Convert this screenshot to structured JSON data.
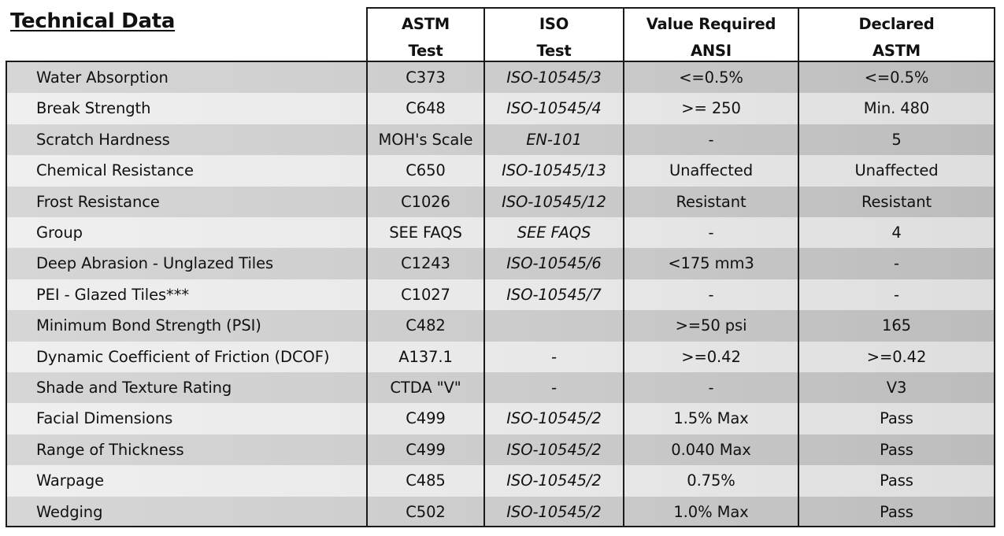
{
  "title": "Technical Data",
  "columns": {
    "astm": [
      "ASTM",
      "Test"
    ],
    "iso": [
      "ISO",
      "Test"
    ],
    "required": [
      "Value Required",
      "ANSI"
    ],
    "declared": [
      "Declared",
      "ASTM"
    ]
  },
  "rows": [
    {
      "property": "Water Absorption",
      "astm": "C373",
      "iso": "ISO-10545/3",
      "required": "<=0.5%",
      "declared": "<=0.5%"
    },
    {
      "property": "Break Strength",
      "astm": "C648",
      "iso": "ISO-10545/4",
      "required": ">= 250",
      "declared": "Min. 480"
    },
    {
      "property": "Scratch Hardness",
      "astm": "MOH's Scale",
      "iso": "EN-101",
      "required": "-",
      "declared": "5"
    },
    {
      "property": "Chemical Resistance",
      "astm": "C650",
      "iso": "ISO-10545/13",
      "required": "Unaffected",
      "declared": "Unaffected"
    },
    {
      "property": "Frost Resistance",
      "astm": "C1026",
      "iso": "ISO-10545/12",
      "required": "Resistant",
      "declared": "Resistant"
    },
    {
      "property": "Group",
      "astm": "SEE FAQS",
      "iso": "SEE FAQS",
      "required": "-",
      "declared": "4"
    },
    {
      "property": "Deep Abrasion - Unglazed Tiles",
      "astm": "C1243",
      "iso": "ISO-10545/6",
      "required": "<175 mm3",
      "declared": "-"
    },
    {
      "property": "PEI - Glazed Tiles***",
      "astm": "C1027",
      "iso": "ISO-10545/7",
      "required": "-",
      "declared": "-"
    },
    {
      "property": "Minimum Bond Strength (PSI)",
      "astm": "C482",
      "iso": "",
      "required": ">=50 psi",
      "declared": "165"
    },
    {
      "property": "Dynamic Coefficient of Friction (DCOF)",
      "astm": "A137.1",
      "iso": "-",
      "required": ">=0.42",
      "declared": ">=0.42"
    },
    {
      "property": "Shade and Texture Rating",
      "astm": "CTDA \"V\"",
      "iso": "-",
      "required": "-",
      "declared": "V3"
    },
    {
      "property": "Facial Dimensions",
      "astm": "C499",
      "iso": "ISO-10545/2",
      "required": "1.5% Max",
      "declared": "Pass"
    },
    {
      "property": "Range of Thickness",
      "astm": "C499",
      "iso": "ISO-10545/2",
      "required": "0.040 Max",
      "declared": "Pass"
    },
    {
      "property": "Warpage",
      "astm": "C485",
      "iso": "ISO-10545/2",
      "required": "0.75%",
      "declared": "Pass"
    },
    {
      "property": "Wedging",
      "astm": "C502",
      "iso": "ISO-10545/2",
      "required": "1.0% Max",
      "declared": "Pass"
    }
  ]
}
